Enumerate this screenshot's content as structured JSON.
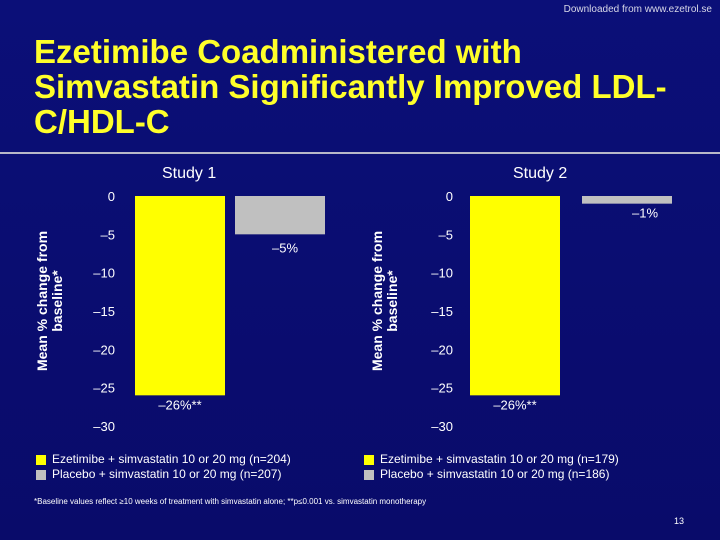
{
  "watermark": "Downloaded from www.ezetrol.se",
  "title": "Ezetimibe Coadministered with Simvastatin Significantly Improved LDL-C/HDL-C",
  "colors": {
    "ezetimibe": "#ffff00",
    "placebo": "#c0c0c0",
    "title": "#ffff2a",
    "background": "#0b0f78"
  },
  "chart_data": [
    {
      "type": "bar",
      "title": "Study 1",
      "ylabel": "Mean % change from baseline*",
      "ylim": [
        -30,
        0
      ],
      "yticks": [
        0,
        -5,
        -10,
        -15,
        -20,
        -25,
        -30
      ],
      "ytick_labels": [
        "0",
        "–5",
        "–10",
        "–15",
        "–20",
        "–25",
        "–30"
      ],
      "series": [
        {
          "name": "Ezetimibe + simvastatin 10 or 20 mg (n=204)",
          "values": [
            -26
          ],
          "label": "–26%**"
        },
        {
          "name": "Placebo + simvastatin 10 or 20 mg (n=207)",
          "values": [
            -5
          ],
          "label": "–5%"
        }
      ]
    },
    {
      "type": "bar",
      "title": "Study 2",
      "ylabel": "Mean % change from baseline*",
      "ylim": [
        -30,
        0
      ],
      "yticks": [
        0,
        -5,
        -10,
        -15,
        -20,
        -25,
        -30
      ],
      "ytick_labels": [
        "0",
        "–5",
        "–10",
        "–15",
        "–20",
        "–25",
        "–30"
      ],
      "series": [
        {
          "name": "Ezetimibe + simvastatin 10 or 20 mg (n=179)",
          "values": [
            -26
          ],
          "label": "–26%**"
        },
        {
          "name": "Placebo + simvastatin 10 or 20 mg (n=186)",
          "values": [
            -1
          ],
          "label": "–1%"
        }
      ]
    }
  ],
  "footnote": "*Baseline values reflect ≥10 weeks of treatment with simvastatin alone; **p≤0.001 vs. simvastatin monotherapy",
  "page_number": "13"
}
